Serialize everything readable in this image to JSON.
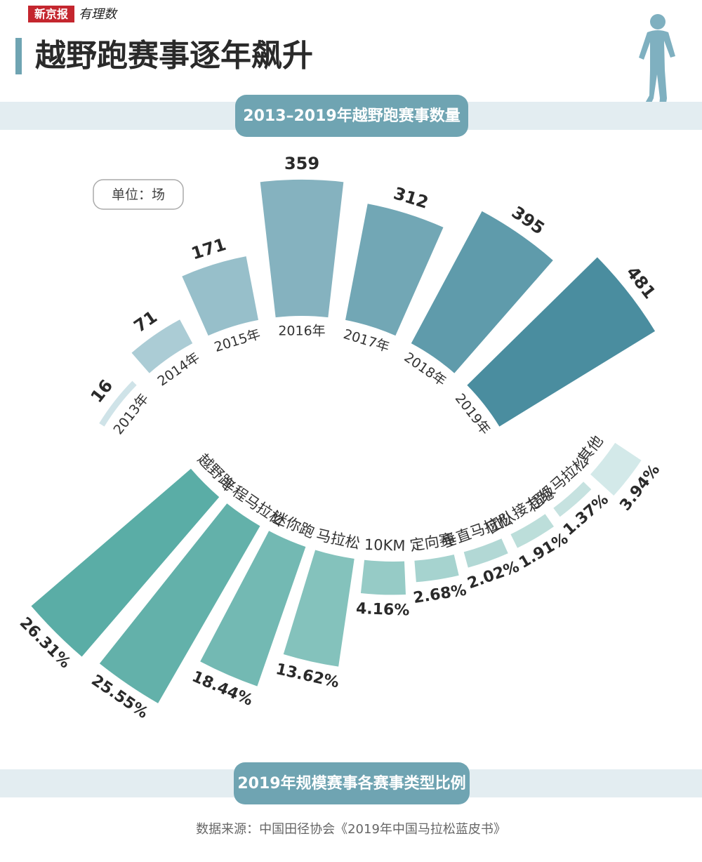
{
  "header": {
    "brand": "新京报",
    "logo": "有理数",
    "title": "越野跑赛事逐年飙升"
  },
  "chart_data": [
    {
      "type": "radial-bar",
      "title": "2013–2019年越野跑赛事数量",
      "unit": "单位：场",
      "categories": [
        "2013年",
        "2014年",
        "2015年",
        "2016年",
        "2017年",
        "2018年",
        "2019年"
      ],
      "values": [
        16,
        71,
        171,
        359,
        312,
        395,
        481
      ],
      "colors": [
        "#cfe3e8",
        "#abccd5",
        "#97bfca",
        "#85b2bf",
        "#72a7b5",
        "#5f9bab",
        "#4a8d9f"
      ]
    },
    {
      "type": "radial-bar",
      "title": "2019年规模赛事各赛事类型比例",
      "categories": [
        "越野跑",
        "半程马拉松",
        "迷你跑",
        "马拉松",
        "10KM",
        "定向赛",
        "垂直马拉松",
        "团队接力跑",
        "超级马拉松",
        "其他"
      ],
      "values": [
        26.31,
        25.55,
        18.44,
        13.62,
        4.16,
        2.68,
        2.02,
        1.91,
        1.37,
        3.94
      ],
      "value_labels": [
        "26.31%",
        "25.55%",
        "18.44%",
        "13.62%",
        "4.16%",
        "2.68%",
        "2.02%",
        "1.91%",
        "1.37%",
        "3.94%"
      ],
      "colors": [
        "#5aada6",
        "#63b1aa",
        "#73b9b3",
        "#84c2bc",
        "#96cbc6",
        "#a6d3cf",
        "#b2d8d5",
        "#bcdeda",
        "#c6e2e0",
        "#d3e9e9"
      ]
    }
  ],
  "source": "数据来源：中国田径协会《2019年中国马拉松蓝皮书》"
}
